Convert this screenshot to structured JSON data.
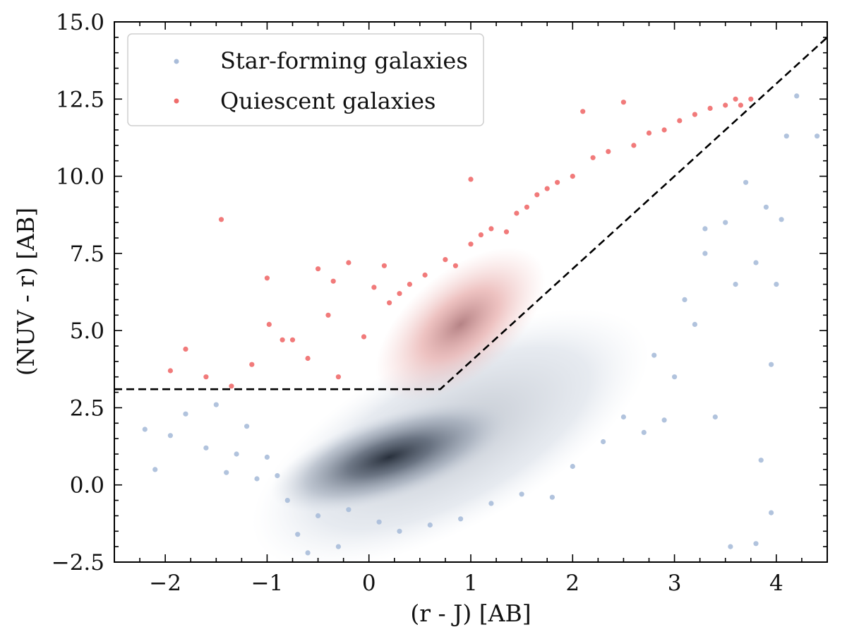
{
  "chart_data": {
    "type": "scatter",
    "title": "",
    "xlabel": "(r - J) [AB]",
    "ylabel": "(NUV - r) [AB]",
    "xlim": [
      -2.5,
      4.5
    ],
    "ylim": [
      -2.5,
      15.0
    ],
    "grid": false,
    "legend_position": "top-left",
    "x_ticks": [
      -2,
      -1,
      0,
      1,
      2,
      3,
      4
    ],
    "x_tick_labels": [
      "−2",
      "−1",
      "0",
      "1",
      "2",
      "3",
      "4"
    ],
    "y_ticks": [
      -2.5,
      0.0,
      2.5,
      5.0,
      7.5,
      10.0,
      12.5,
      15.0
    ],
    "y_tick_labels": [
      "−2.5",
      "0.0",
      "2.5",
      "5.0",
      "7.5",
      "10.0",
      "12.5",
      "15.0"
    ],
    "series": [
      {
        "name": "Star-forming galaxies",
        "color": "#a9bcd9",
        "points": [
          [
            -2.2,
            1.8
          ],
          [
            -2.1,
            0.5
          ],
          [
            -1.95,
            1.6
          ],
          [
            -1.8,
            2.3
          ],
          [
            -1.6,
            1.2
          ],
          [
            -1.5,
            2.6
          ],
          [
            -1.4,
            0.4
          ],
          [
            -1.3,
            1.0
          ],
          [
            -1.2,
            1.9
          ],
          [
            -1.1,
            0.2
          ],
          [
            -1.0,
            0.9
          ],
          [
            -0.9,
            0.3
          ],
          [
            -0.8,
            -0.5
          ],
          [
            -0.7,
            -1.6
          ],
          [
            -0.6,
            -2.2
          ],
          [
            -0.5,
            -1.0
          ],
          [
            -0.3,
            -2.0
          ],
          [
            -0.2,
            -0.8
          ],
          [
            0.1,
            -1.2
          ],
          [
            0.3,
            -1.5
          ],
          [
            0.6,
            -1.3
          ],
          [
            0.9,
            -1.1
          ],
          [
            1.2,
            -0.6
          ],
          [
            1.5,
            -0.3
          ],
          [
            1.8,
            -0.4
          ],
          [
            2.0,
            0.6
          ],
          [
            2.3,
            1.4
          ],
          [
            2.5,
            2.2
          ],
          [
            2.7,
            1.7
          ],
          [
            2.8,
            4.2
          ],
          [
            3.0,
            3.5
          ],
          [
            3.1,
            6.0
          ],
          [
            3.2,
            5.2
          ],
          [
            3.3,
            7.5
          ],
          [
            3.4,
            2.2
          ],
          [
            3.5,
            8.5
          ],
          [
            3.6,
            6.5
          ],
          [
            3.7,
            9.8
          ],
          [
            3.8,
            7.2
          ],
          [
            3.9,
            9.0
          ],
          [
            4.0,
            6.5
          ],
          [
            4.1,
            11.3
          ],
          [
            4.2,
            12.6
          ],
          [
            4.4,
            11.3
          ],
          [
            3.55,
            -2.0
          ],
          [
            3.8,
            -1.9
          ],
          [
            3.85,
            0.8
          ],
          [
            3.95,
            -0.9
          ],
          [
            3.95,
            3.9
          ],
          [
            4.05,
            8.6
          ],
          [
            2.9,
            2.1
          ],
          [
            3.3,
            8.3
          ]
        ]
      },
      {
        "name": "Quiescent galaxies",
        "color": "#ef6c6b",
        "points": [
          [
            -1.95,
            3.7
          ],
          [
            -1.8,
            4.4
          ],
          [
            -1.6,
            3.5
          ],
          [
            -1.45,
            8.6
          ],
          [
            -1.35,
            3.2
          ],
          [
            -1.15,
            3.9
          ],
          [
            -1.0,
            6.7
          ],
          [
            -0.98,
            5.2
          ],
          [
            -0.85,
            4.7
          ],
          [
            -0.75,
            4.7
          ],
          [
            -0.6,
            4.1
          ],
          [
            -0.5,
            7.0
          ],
          [
            -0.4,
            5.5
          ],
          [
            -0.35,
            6.6
          ],
          [
            -0.3,
            3.5
          ],
          [
            -0.2,
            7.2
          ],
          [
            -0.05,
            4.8
          ],
          [
            0.05,
            6.4
          ],
          [
            0.15,
            7.1
          ],
          [
            0.2,
            5.9
          ],
          [
            0.3,
            6.2
          ],
          [
            0.4,
            6.5
          ],
          [
            0.55,
            6.8
          ],
          [
            0.75,
            7.3
          ],
          [
            0.85,
            7.1
          ],
          [
            1.0,
            7.8
          ],
          [
            1.1,
            8.1
          ],
          [
            1.2,
            8.3
          ],
          [
            1.35,
            8.2
          ],
          [
            1.45,
            8.8
          ],
          [
            1.55,
            9.0
          ],
          [
            1.65,
            9.4
          ],
          [
            1.75,
            9.6
          ],
          [
            1.85,
            9.8
          ],
          [
            2.0,
            10.0
          ],
          [
            2.1,
            12.1
          ],
          [
            2.2,
            10.6
          ],
          [
            2.35,
            10.8
          ],
          [
            2.5,
            12.4
          ],
          [
            2.6,
            11.0
          ],
          [
            2.75,
            11.4
          ],
          [
            2.9,
            11.5
          ],
          [
            3.05,
            11.8
          ],
          [
            3.2,
            12.0
          ],
          [
            3.35,
            12.2
          ],
          [
            3.5,
            12.3
          ],
          [
            3.6,
            12.5
          ],
          [
            3.75,
            12.5
          ],
          [
            3.65,
            12.3
          ],
          [
            1.0,
            9.9
          ]
        ]
      }
    ],
    "density_regions": [
      {
        "name": "Star-forming density",
        "color": "#2f3845",
        "center": [
          0.2,
          0.9
        ],
        "spread": [
          0.9,
          0.9
        ]
      },
      {
        "name": "Quiescent density",
        "color": "#e8a3a3",
        "center": [
          0.9,
          5.2
        ],
        "spread": [
          0.5,
          0.9
        ]
      }
    ],
    "dividing_line": {
      "style": "dashed",
      "color": "#000000",
      "vertices": [
        [
          -2.5,
          3.1
        ],
        [
          0.7,
          3.1
        ],
        [
          4.5,
          14.5
        ]
      ]
    }
  }
}
